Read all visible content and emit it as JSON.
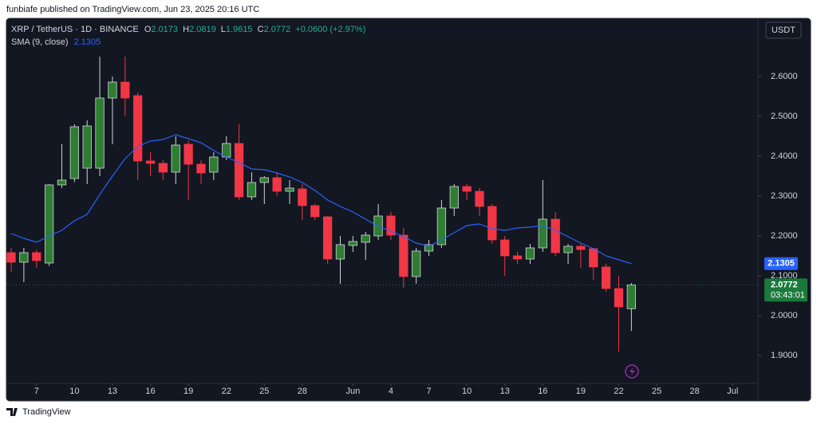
{
  "header": {
    "text": "funbiafe published on TradingView.com, Jun 23, 2025 20:16 UTC"
  },
  "footer": {
    "brand": "TradingView"
  },
  "chart_data": {
    "type": "candlestick",
    "symbol": "XRP / TetherUS · 1D · BINANCE",
    "legend_keys": [
      "O",
      "H",
      "L",
      "C"
    ],
    "change": "+0.0600 (+2.97%)",
    "currency": "USDT",
    "countdown": "03:43:01",
    "x": [
      0,
      1,
      2,
      3,
      4,
      5,
      6,
      7,
      8,
      9,
      10,
      11,
      12,
      13,
      14,
      15,
      16,
      17,
      18,
      19,
      20,
      21,
      22,
      23,
      24,
      25,
      26,
      27,
      28,
      29,
      30,
      31,
      32,
      33,
      34,
      35,
      36,
      37,
      38,
      39,
      40,
      41,
      42,
      43,
      44,
      45,
      46,
      47,
      48,
      49
    ],
    "open": [
      2.158,
      2.134,
      2.158,
      2.132,
      2.328,
      2.344,
      2.37,
      2.37,
      2.546,
      2.586,
      2.552,
      2.388,
      2.382,
      2.36,
      2.43,
      2.38,
      2.36,
      2.398,
      2.432,
      2.298,
      2.334,
      2.346,
      2.312,
      2.318,
      2.276,
      2.248,
      2.142,
      2.176,
      2.184,
      2.2,
      2.25,
      2.202,
      2.098,
      2.162,
      2.178,
      2.27,
      2.324,
      2.312,
      2.274,
      2.19,
      2.15,
      2.142,
      2.17,
      2.242,
      2.158,
      2.174,
      2.168,
      2.122,
      2.068,
      2.0173
    ],
    "high": [
      2.17,
      2.17,
      2.165,
      2.33,
      2.43,
      2.48,
      2.49,
      2.65,
      2.6,
      2.65,
      2.56,
      2.41,
      2.39,
      2.45,
      2.44,
      2.39,
      2.41,
      2.45,
      2.48,
      2.36,
      2.35,
      2.36,
      2.34,
      2.33,
      2.28,
      2.25,
      2.2,
      2.2,
      2.21,
      2.28,
      2.26,
      2.22,
      2.17,
      2.19,
      2.29,
      2.33,
      2.33,
      2.32,
      2.28,
      2.2,
      2.16,
      2.18,
      2.34,
      2.26,
      2.18,
      2.18,
      2.17,
      2.13,
      2.1,
      2.0819
    ],
    "low": [
      2.11,
      2.084,
      2.12,
      2.125,
      2.32,
      2.335,
      2.33,
      2.35,
      2.43,
      2.5,
      2.34,
      2.35,
      2.34,
      2.33,
      2.29,
      2.33,
      2.34,
      2.39,
      2.29,
      2.29,
      2.28,
      2.3,
      2.28,
      2.24,
      2.24,
      2.13,
      2.08,
      2.16,
      2.14,
      2.19,
      2.19,
      2.07,
      2.08,
      2.15,
      2.17,
      2.25,
      2.29,
      2.25,
      2.18,
      2.1,
      2.13,
      2.13,
      2.16,
      2.15,
      2.13,
      2.12,
      2.09,
      2.06,
      1.91,
      1.9615
    ],
    "close": [
      2.134,
      2.158,
      2.138,
      2.328,
      2.34,
      2.474,
      2.476,
      2.546,
      2.586,
      2.546,
      2.388,
      2.382,
      2.36,
      2.428,
      2.38,
      2.358,
      2.398,
      2.432,
      2.298,
      2.334,
      2.346,
      2.312,
      2.32,
      2.276,
      2.248,
      2.142,
      2.178,
      2.186,
      2.202,
      2.25,
      2.202,
      2.098,
      2.162,
      2.178,
      2.27,
      2.324,
      2.312,
      2.274,
      2.19,
      2.15,
      2.142,
      2.17,
      2.242,
      2.158,
      2.174,
      2.166,
      2.122,
      2.068,
      2.022,
      2.0772
    ],
    "up_color": "#2e7d32",
    "up_border": "#d1d4dc",
    "down_color": "#f23645",
    "sma": {
      "name": "SMA (9, close)",
      "color": "#2962ff",
      "values": [
        2.206,
        2.194,
        2.184,
        2.2,
        2.214,
        2.238,
        2.254,
        2.304,
        2.35,
        2.394,
        2.424,
        2.438,
        2.442,
        2.454,
        2.444,
        2.434,
        2.414,
        2.398,
        2.384,
        2.368,
        2.366,
        2.358,
        2.348,
        2.334,
        2.314,
        2.29,
        2.274,
        2.26,
        2.242,
        2.224,
        2.212,
        2.198,
        2.182,
        2.174,
        2.19,
        2.208,
        2.226,
        2.23,
        2.218,
        2.214,
        2.22,
        2.222,
        2.226,
        2.214,
        2.198,
        2.182,
        2.168,
        2.15,
        2.14,
        2.1305
      ]
    },
    "xlim": [
      -0.38,
      59
    ],
    "xticks": [
      {
        "value": 2,
        "label": "7"
      },
      {
        "value": 5,
        "label": "10"
      },
      {
        "value": 8,
        "label": "13"
      },
      {
        "value": 11,
        "label": "16"
      },
      {
        "value": 14,
        "label": "19"
      },
      {
        "value": 17,
        "label": "22"
      },
      {
        "value": 20,
        "label": "25"
      },
      {
        "value": 23,
        "label": "28"
      },
      {
        "value": 27,
        "label": "Jun"
      },
      {
        "value": 30,
        "label": "4"
      },
      {
        "value": 33,
        "label": "7"
      },
      {
        "value": 36,
        "label": "10"
      },
      {
        "value": 39,
        "label": "13"
      },
      {
        "value": 42,
        "label": "16"
      },
      {
        "value": 45,
        "label": "19"
      },
      {
        "value": 48,
        "label": "22"
      },
      {
        "value": 51,
        "label": "25"
      },
      {
        "value": 54,
        "label": "28"
      },
      {
        "value": 57,
        "label": "Jul"
      }
    ],
    "ylim": [
      1.832,
      2.744
    ],
    "yticks": [
      {
        "value": 1.9,
        "label": "1.9000"
      },
      {
        "value": 2.0,
        "label": "2.0000"
      },
      {
        "value": 2.1,
        "label": "2.1000"
      },
      {
        "value": 2.2,
        "label": "2.2000"
      },
      {
        "value": 2.3,
        "label": "2.3000"
      },
      {
        "value": 2.4,
        "label": "2.4000"
      },
      {
        "value": 2.5,
        "label": "2.5000"
      },
      {
        "value": 2.6,
        "label": "2.6000"
      }
    ]
  }
}
